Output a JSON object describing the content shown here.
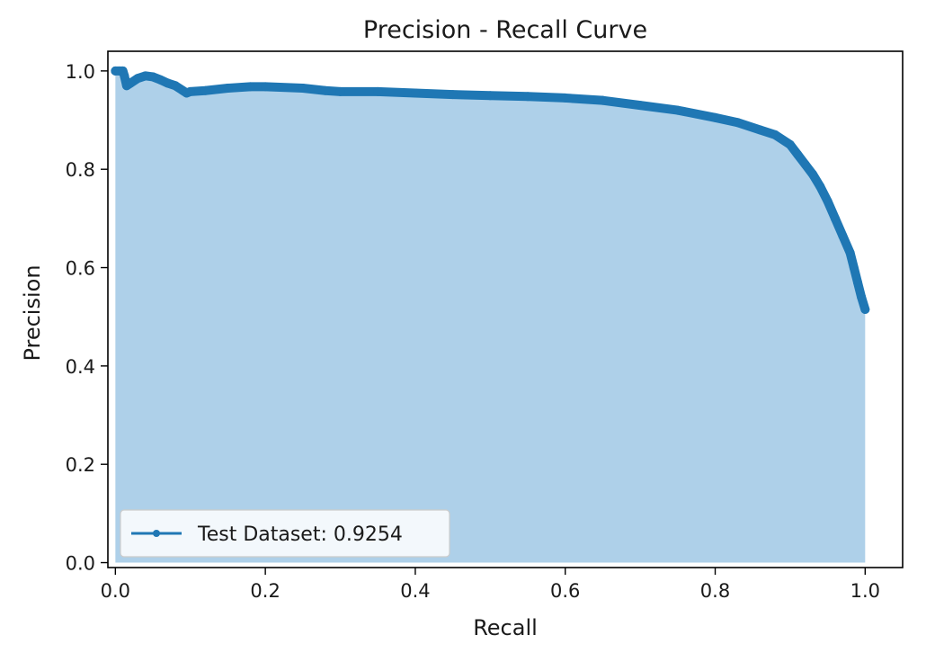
{
  "chart_data": {
    "type": "area",
    "title": "Precision - Recall Curve",
    "xlabel": "Recall",
    "ylabel": "Precision",
    "xlim": [
      -0.01,
      1.05
    ],
    "ylim": [
      -0.01,
      1.04
    ],
    "xticks": [
      "0.0",
      "0.2",
      "0.4",
      "0.6",
      "0.8",
      "1.0"
    ],
    "yticks": [
      "0.0",
      "0.2",
      "0.4",
      "0.6",
      "0.8",
      "1.0"
    ],
    "grid": false,
    "legend_position": "lower-left",
    "colors": {
      "line": "#1f77b4",
      "fill": "#aed0e9",
      "axes": "#000000"
    },
    "series": [
      {
        "name": "Test Dataset: 0.9254",
        "x": [
          0.0,
          0.005,
          0.01,
          0.012,
          0.015,
          0.02,
          0.03,
          0.04,
          0.05,
          0.06,
          0.07,
          0.08,
          0.09,
          0.095,
          0.1,
          0.12,
          0.15,
          0.18,
          0.2,
          0.25,
          0.28,
          0.3,
          0.35,
          0.4,
          0.45,
          0.5,
          0.55,
          0.6,
          0.65,
          0.7,
          0.75,
          0.8,
          0.83,
          0.86,
          0.88,
          0.9,
          0.91,
          0.92,
          0.93,
          0.94,
          0.95,
          0.96,
          0.97,
          0.98,
          0.985,
          0.99,
          0.995,
          1.0
        ],
        "y": [
          1.0,
          1.0,
          1.0,
          0.99,
          0.97,
          0.975,
          0.985,
          0.99,
          0.988,
          0.982,
          0.975,
          0.97,
          0.96,
          0.955,
          0.958,
          0.96,
          0.965,
          0.968,
          0.968,
          0.965,
          0.96,
          0.958,
          0.958,
          0.955,
          0.952,
          0.95,
          0.948,
          0.945,
          0.94,
          0.93,
          0.92,
          0.905,
          0.895,
          0.88,
          0.87,
          0.85,
          0.83,
          0.81,
          0.79,
          0.765,
          0.735,
          0.7,
          0.665,
          0.63,
          0.6,
          0.57,
          0.54,
          0.515
        ]
      }
    ]
  }
}
